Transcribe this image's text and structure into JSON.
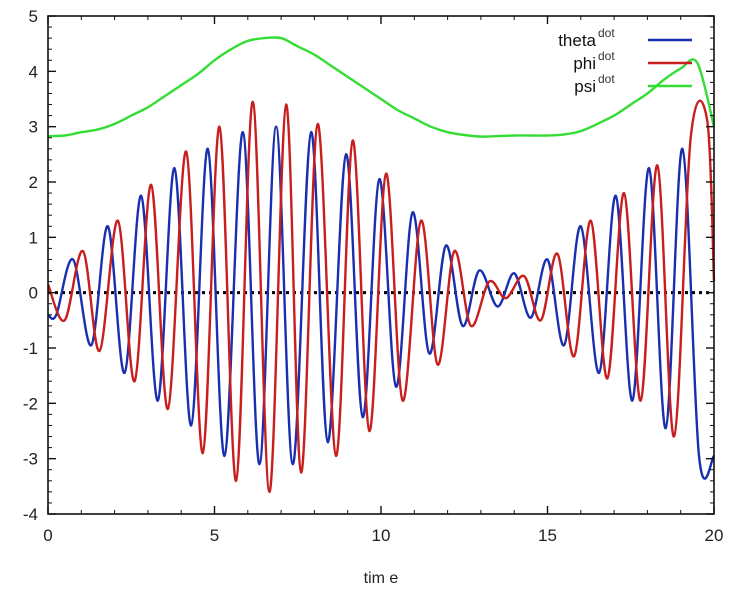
{
  "chart_data": {
    "type": "line",
    "xlabel": "tim e",
    "ylabel": "",
    "xlim": [
      0,
      20
    ],
    "ylim": [
      -4,
      5
    ],
    "x_ticks": [
      "0",
      "5",
      "10",
      "15",
      "20"
    ],
    "y_ticks": [
      "-4",
      "-3",
      "-2",
      "-1",
      "0",
      "1",
      "2",
      "3",
      "4",
      "5"
    ],
    "legend_position": "top-right",
    "grid": false,
    "zero_line": {
      "y": 0,
      "style": "dotted",
      "color": "#000000"
    },
    "series": [
      {
        "name": "theta",
        "name_sup": "dot",
        "color": "#1a2fb0",
        "x": [
          0,
          0.25,
          0.75,
          1.3,
          1.8,
          2.3,
          2.8,
          3.3,
          3.8,
          4.3,
          4.8,
          5.3,
          5.85,
          6.35,
          6.85,
          7.35,
          7.9,
          8.4,
          8.95,
          9.45,
          9.95,
          10.45,
          10.95,
          11.45,
          11.95,
          12.45,
          12.95,
          13.5,
          14.0,
          14.5,
          15.0,
          15.5,
          16.0,
          16.55,
          17.05,
          17.55,
          18.05,
          18.55,
          19.05,
          19.55,
          20.0
        ],
        "y": [
          -0.4,
          -0.4,
          0.6,
          -0.95,
          1.2,
          -1.45,
          1.75,
          -1.95,
          2.25,
          -2.4,
          2.6,
          -2.95,
          2.9,
          -3.1,
          3.0,
          -3.1,
          2.9,
          -2.7,
          2.5,
          -2.25,
          2.05,
          -1.7,
          1.45,
          -1.1,
          0.85,
          -0.6,
          0.4,
          -0.25,
          0.35,
          -0.45,
          0.6,
          -0.95,
          1.2,
          -1.45,
          1.75,
          -1.95,
          2.25,
          -2.45,
          2.6,
          -2.95,
          -2.95
        ]
      },
      {
        "name": "phi",
        "name_sup": "dot",
        "color": "#c81e1e",
        "x": [
          0,
          0.5,
          1.05,
          1.55,
          2.1,
          2.6,
          3.1,
          3.6,
          4.15,
          4.65,
          5.15,
          5.65,
          6.15,
          6.65,
          7.15,
          7.6,
          8.1,
          8.65,
          9.15,
          9.65,
          10.15,
          10.65,
          11.2,
          11.7,
          12.2,
          12.7,
          13.25,
          13.75,
          14.3,
          14.8,
          15.3,
          15.8,
          16.3,
          16.8,
          17.3,
          17.8,
          18.3,
          18.8,
          19.3,
          19.8,
          20.0
        ],
        "y": [
          0.15,
          -0.5,
          0.75,
          -1.05,
          1.3,
          -1.6,
          1.95,
          -2.1,
          2.55,
          -2.9,
          3.0,
          -3.4,
          3.45,
          -3.6,
          3.4,
          -3.25,
          3.05,
          -2.95,
          2.75,
          -2.5,
          2.15,
          -1.95,
          1.3,
          -1.3,
          0.75,
          -0.6,
          0.2,
          -0.1,
          0.3,
          -0.5,
          0.7,
          -1.15,
          1.3,
          -1.55,
          1.8,
          -1.95,
          2.3,
          -2.6,
          2.8,
          3.1,
          0.2
        ]
      },
      {
        "name": "psi",
        "name_sup": "dot",
        "color": "#33dd33",
        "x": [
          0,
          0.5,
          1.0,
          1.5,
          2.0,
          2.5,
          3.0,
          3.5,
          4.0,
          4.5,
          5.0,
          5.5,
          6.0,
          6.5,
          7.0,
          7.5,
          8.0,
          8.5,
          9.0,
          9.5,
          10.0,
          10.5,
          11.0,
          11.5,
          12.0,
          12.5,
          13.0,
          13.5,
          14.0,
          14.5,
          15.0,
          15.5,
          16.0,
          16.5,
          17.0,
          17.5,
          18.0,
          18.5,
          19.0,
          19.5,
          20.0
        ],
        "y": [
          2.83,
          2.84,
          2.9,
          2.95,
          3.05,
          3.2,
          3.35,
          3.55,
          3.75,
          3.95,
          4.2,
          4.4,
          4.55,
          4.6,
          4.6,
          4.45,
          4.3,
          4.1,
          3.9,
          3.7,
          3.5,
          3.3,
          3.15,
          3.0,
          2.9,
          2.85,
          2.82,
          2.83,
          2.84,
          2.84,
          2.84,
          2.86,
          2.92,
          3.05,
          3.2,
          3.4,
          3.6,
          3.85,
          4.05,
          4.15,
          3.0
        ]
      }
    ]
  }
}
